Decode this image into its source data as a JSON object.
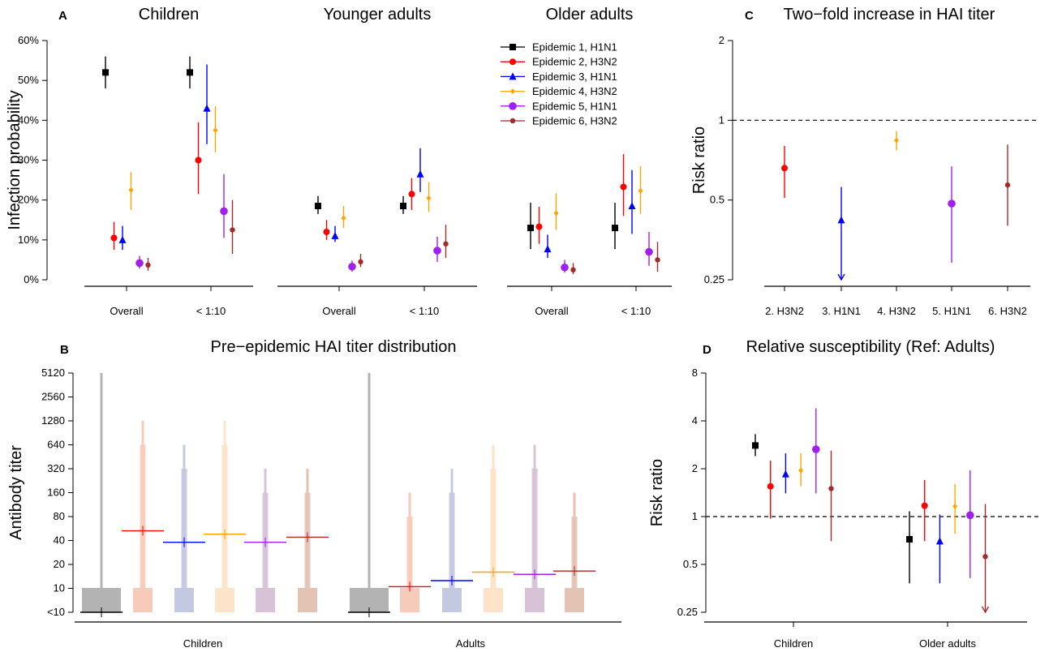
{
  "series_colors": [
    "#000000",
    "#ff0000",
    "#0000ff",
    "#ffa500",
    "#a020f0",
    "#a52a2a"
  ],
  "series_markers": [
    "square",
    "circle",
    "triangle",
    "diamond",
    "circle-large",
    "circle-small"
  ],
  "chart_data": [
    {
      "panel": "A",
      "type": "scatter",
      "subpanel_titles": [
        "Children",
        "Younger adults",
        "Older adults"
      ],
      "ylabel": "Infection probability",
      "yticks": [
        "0%",
        "10%",
        "20%",
        "30%",
        "40%",
        "50%",
        "60%"
      ],
      "ylim": [
        0,
        0.6
      ],
      "categories": [
        "Overall",
        "< 1:10"
      ],
      "legend": [
        "Epidemic 1, H1N1",
        "Epidemic 2, H3N2",
        "Epidemic 3, H1N1",
        "Epidemic 4, H3N2",
        "Epidemic 5, H1N1",
        "Epidemic 6, H3N2"
      ],
      "legend_position": "top-right",
      "groups": [
        {
          "name": "Children",
          "Overall": [
            [
              0.52,
              0.48,
              0.56
            ],
            [
              0.105,
              0.075,
              0.145
            ],
            [
              0.1,
              0.075,
              0.135
            ],
            [
              0.225,
              0.175,
              0.27
            ],
            [
              0.042,
              0.028,
              0.06
            ],
            [
              0.037,
              0.023,
              0.055
            ]
          ],
          "< 1:10": [
            [
              0.52,
              0.48,
              0.56
            ],
            [
              0.3,
              0.215,
              0.395
            ],
            [
              0.43,
              0.34,
              0.54
            ],
            [
              0.375,
              0.32,
              0.435
            ],
            [
              0.172,
              0.105,
              0.265
            ],
            [
              0.125,
              0.065,
              0.2
            ]
          ]
        },
        {
          "name": "Younger adults",
          "Overall": [
            [
              0.185,
              0.165,
              0.21
            ],
            [
              0.12,
              0.1,
              0.15
            ],
            [
              0.11,
              0.095,
              0.135
            ],
            [
              0.155,
              0.13,
              0.185
            ],
            [
              0.033,
              0.02,
              0.048
            ],
            [
              0.045,
              0.032,
              0.065
            ]
          ],
          "< 1:10": [
            [
              0.185,
              0.165,
              0.21
            ],
            [
              0.215,
              0.175,
              0.255
            ],
            [
              0.265,
              0.22,
              0.33
            ],
            [
              0.205,
              0.17,
              0.245
            ],
            [
              0.073,
              0.045,
              0.108
            ],
            [
              0.09,
              0.055,
              0.138
            ]
          ]
        },
        {
          "name": "Older adults",
          "Overall": [
            [
              0.13,
              0.077,
              0.193
            ],
            [
              0.133,
              0.09,
              0.183
            ],
            [
              0.077,
              0.055,
              0.113
            ],
            [
              0.167,
              0.125,
              0.217
            ],
            [
              0.031,
              0.018,
              0.05
            ],
            [
              0.025,
              0.014,
              0.042
            ]
          ],
          "< 1:10": [
            [
              0.13,
              0.077,
              0.193
            ],
            [
              0.233,
              0.16,
              0.315
            ],
            [
              0.185,
              0.115,
              0.275
            ],
            [
              0.223,
              0.165,
              0.285
            ],
            [
              0.07,
              0.035,
              0.12
            ],
            [
              0.05,
              0.02,
              0.095
            ]
          ]
        }
      ]
    },
    {
      "panel": "C",
      "type": "scatter",
      "title": "Two−fold increase in HAI titer",
      "ylabel": "Risk ratio",
      "y_scale": "log",
      "yticks": [
        "0.25",
        "0.5",
        "1",
        "2"
      ],
      "reference_line": 1,
      "categories": [
        "2. H3N2",
        "3. H1N1",
        "4. H3N2",
        "5. H1N1",
        "6. H3N2"
      ],
      "points": [
        {
          "series": 1,
          "value": 0.66,
          "low": 0.51,
          "high": 0.8
        },
        {
          "series": 2,
          "value": 0.42,
          "low": 0.25,
          "high": 0.56,
          "arrow_down": true
        },
        {
          "series": 3,
          "value": 0.84,
          "low": 0.77,
          "high": 0.91
        },
        {
          "series": 4,
          "value": 0.485,
          "low": 0.29,
          "high": 0.67
        },
        {
          "series": 5,
          "value": 0.57,
          "low": 0.4,
          "high": 0.81
        }
      ]
    },
    {
      "panel": "B",
      "type": "bar",
      "title": "Pre−epidemic HAI titer distribution",
      "ylabel": "Antibody titer",
      "y_scale": "log",
      "yticks": [
        "<10",
        "10",
        "20",
        "40",
        "80",
        "160",
        "320",
        "640",
        "1280",
        "2560",
        "5120"
      ],
      "categories": [
        "Children",
        "Adults"
      ],
      "fill_colors": [
        "#b3b3b3",
        "#f7cbb9",
        "#c4c8e1",
        "#fde3c8",
        "#d8c2d8",
        "#e3c3b4"
      ],
      "groups": [
        {
          "name": "Children",
          "median": [
            5,
            53,
            38,
            48,
            38,
            44
          ],
          "top": [
            5120,
            1280,
            640,
            1280,
            320,
            320
          ]
        },
        {
          "name": "Adults",
          "median": [
            5,
            10.5,
            12.5,
            16,
            15,
            16.5
          ],
          "top": [
            5120,
            160,
            320,
            640,
            640,
            160
          ]
        }
      ]
    },
    {
      "panel": "D",
      "type": "scatter",
      "title": "Relative susceptibility (Ref: Adults)",
      "ylabel": "Risk ratio",
      "y_scale": "log",
      "yticks": [
        "0.25",
        "0.5",
        "1",
        "2",
        "4",
        "8"
      ],
      "reference_line": 1,
      "categories": [
        "Children",
        "Older adults"
      ],
      "groups": [
        {
          "name": "Children",
          "points": [
            [
              2.8,
              2.4,
              3.3
            ],
            [
              1.55,
              0.97,
              2.25
            ],
            [
              1.85,
              1.4,
              2.5
            ],
            [
              1.95,
              1.55,
              2.5
            ],
            [
              2.65,
              1.4,
              4.8
            ],
            [
              1.5,
              0.7,
              2.6
            ]
          ]
        },
        {
          "name": "Older adults",
          "points": [
            [
              0.72,
              0.38,
              1.08
            ],
            [
              1.17,
              0.7,
              1.7
            ],
            [
              0.7,
              0.38,
              1.03
            ],
            [
              1.16,
              0.78,
              1.6
            ],
            [
              1.02,
              0.41,
              1.95
            ],
            [
              0.56,
              0.25,
              1.2,
              "arrow"
            ]
          ]
        }
      ]
    }
  ],
  "labels": {
    "panel_a": "A",
    "panel_b": "B",
    "panel_c": "C",
    "panel_d": "D"
  }
}
